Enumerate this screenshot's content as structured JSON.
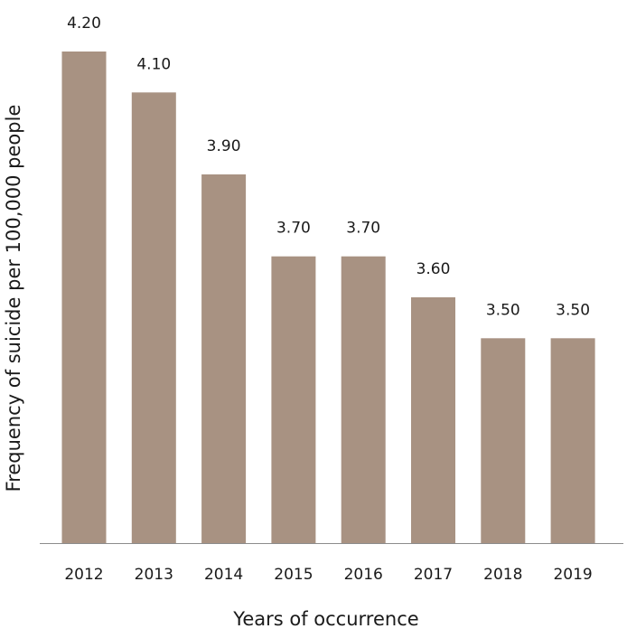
{
  "chart_data": {
    "type": "bar",
    "title": "",
    "xlabel": "Years of occurrence",
    "ylabel": "Frequency of suicide per 100,000 people",
    "categories": [
      "2012",
      "2013",
      "2014",
      "2015",
      "2016",
      "2017",
      "2018",
      "2019"
    ],
    "values": [
      4.2,
      4.1,
      3.9,
      3.7,
      3.7,
      3.6,
      3.5,
      3.5
    ],
    "data_labels": [
      "4.20",
      "4.10",
      "3.90",
      "3.70",
      "3.70",
      "3.60",
      "3.50",
      "3.50"
    ],
    "ylim": [
      3.0,
      4.2
    ],
    "grid": false,
    "legend": "none",
    "bar_color": "#a89282"
  }
}
